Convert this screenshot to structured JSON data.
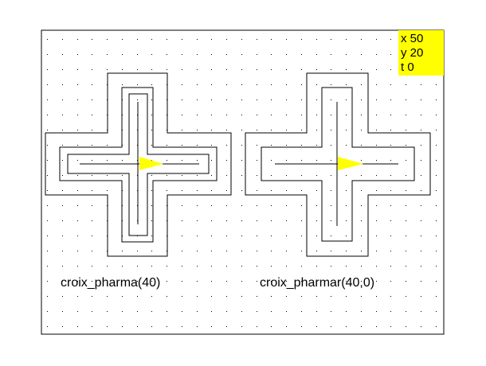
{
  "canvas": {
    "background": "#ffffff",
    "frame_color": "#000000",
    "grid_dot_color": "#000000"
  },
  "turtle_state": {
    "background_color": "#ffff00",
    "x_line": "x 50",
    "y_line": "y 20",
    "t_line": "t 0"
  },
  "figures": [
    {
      "caption": "croix_pharma(40)",
      "turtle_color": "#ffff00"
    },
    {
      "caption": "croix_pharmar(40,0)",
      "turtle_color": "#ffff00"
    }
  ]
}
